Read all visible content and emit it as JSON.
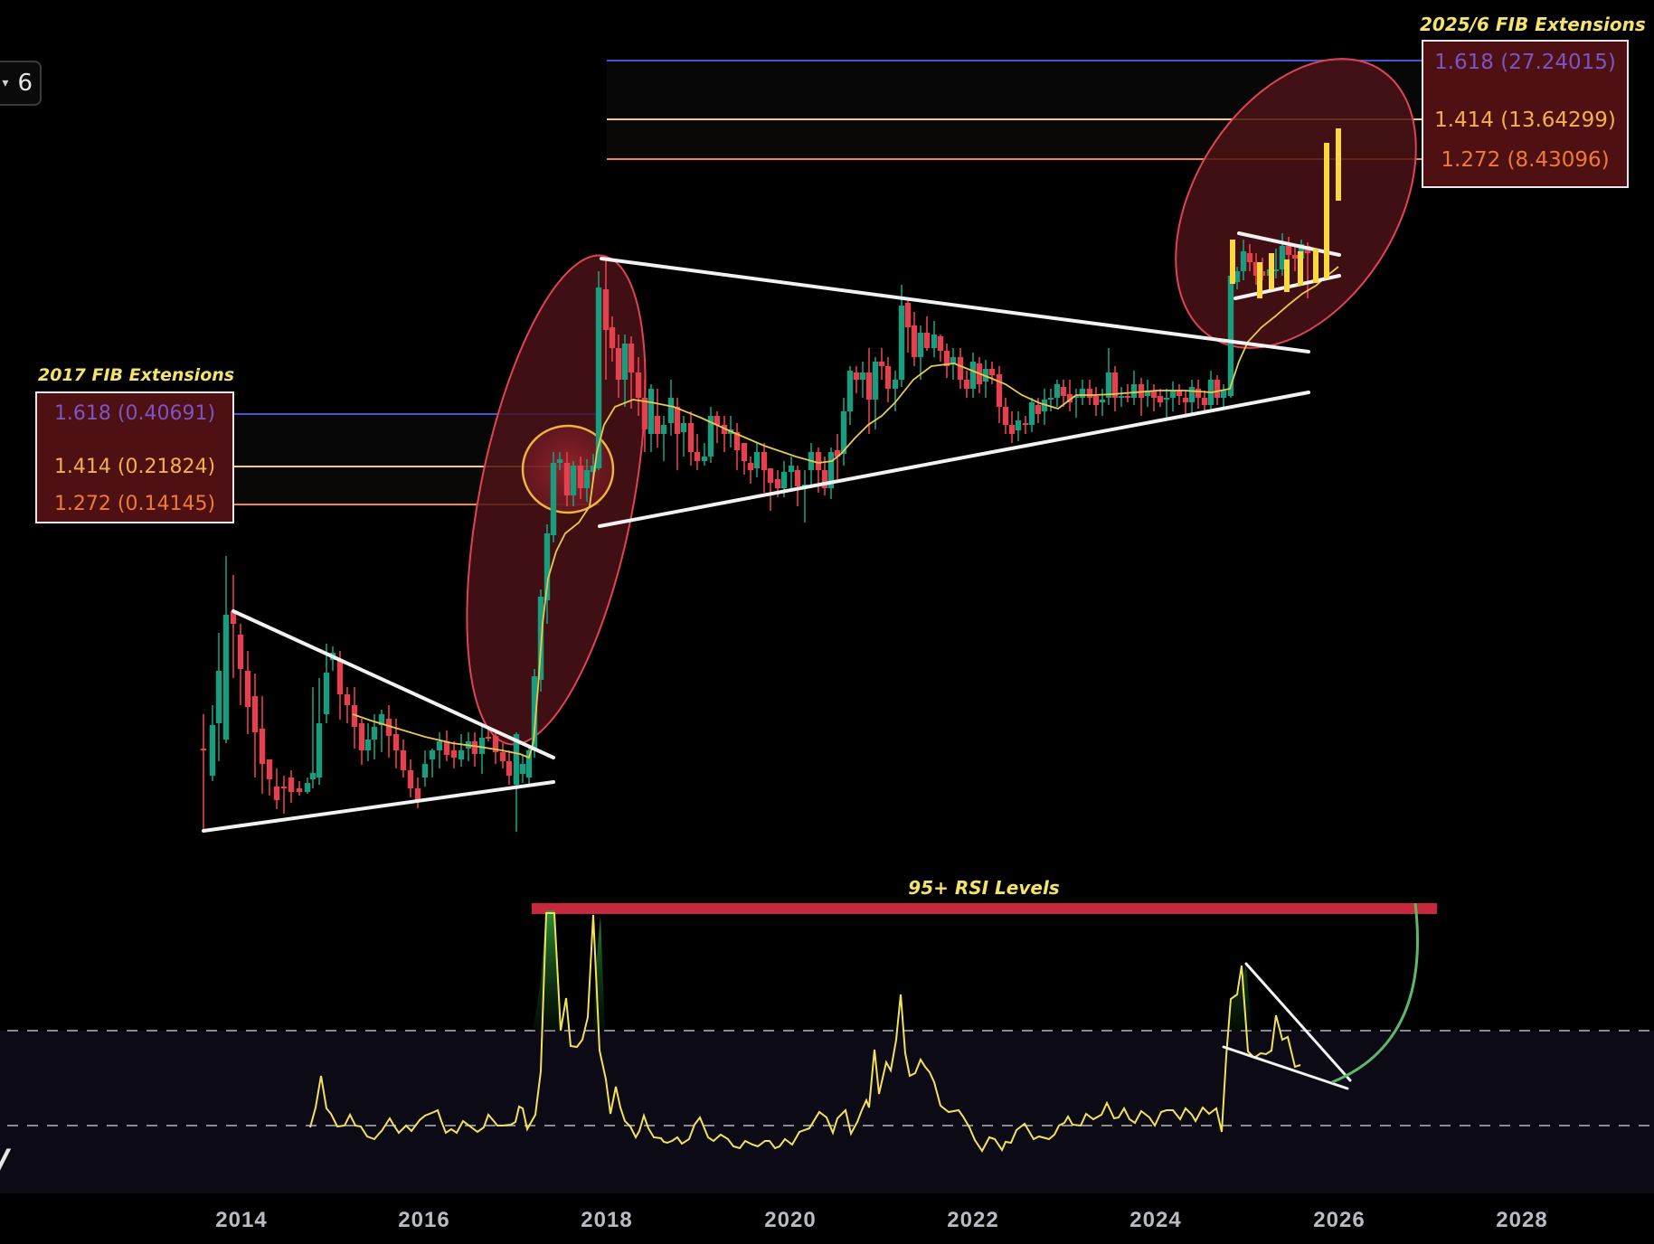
{
  "toolbar": {
    "interval_value": "6",
    "interval_chevron": "▾"
  },
  "annotations": {
    "fib_2017": {
      "title": "2017 FIB Extensions",
      "levels": [
        {
          "ratio": "1.618",
          "value": "0.40691",
          "label": "1.618 (0.40691)",
          "color": "#7b55c4",
          "line_color": "#3f57d6"
        },
        {
          "ratio": "1.414",
          "value": "0.21824",
          "label": "1.414 (0.21824)",
          "color": "#f2b14a",
          "line_color": "#f3d35a"
        },
        {
          "ratio": "1.272",
          "value": "0.14145",
          "label": "1.272 (0.14145)",
          "color": "#f07a34",
          "line_color": "#f08a3a"
        }
      ]
    },
    "fib_2025": {
      "title": "2025/6 FIB Extensions",
      "levels": [
        {
          "ratio": "1.618",
          "value": "27.24015",
          "label": "1.618 (27.24015)",
          "color": "#7b55c4",
          "line_color": "#3f57d6"
        },
        {
          "ratio": "1.414",
          "value": "13.64299",
          "label": "1.414 (13.64299)",
          "color": "#f2b14a",
          "line_color": "#f3d35a"
        },
        {
          "ratio": "1.272",
          "value": "8.43096",
          "label": "1.272 (8.43096)",
          "color": "#f07a34",
          "line_color": "#f08a3a"
        }
      ]
    },
    "rsi_title": "95+ RSI Levels",
    "logo_text": "/"
  },
  "colors": {
    "background": "#000000",
    "up_candle": "#1a9c7f",
    "down_candle": "#e5404e",
    "projection_candle": "#f8d83a",
    "ma_line": "#e9c94a",
    "trendline": "#f2f2f2",
    "highlight_ellipse": "#e04454",
    "rsi_line": "#f2e25a",
    "rsi_band": "#0c0a14",
    "rsi_95_bar": "#c8283c",
    "projection_arc": "#5fb56a"
  },
  "chart_data": [
    {
      "type": "candlestick",
      "title": "",
      "xlabel": "",
      "ylabel": "",
      "x_ticks": [
        "2014",
        "2016",
        "2018",
        "2020",
        "2022",
        "2024",
        "2026",
        "2028"
      ],
      "scale": "log",
      "annotations": [
        {
          "type": "symmetrical_triangle",
          "span": [
            "2013-11",
            "2017-02"
          ]
        },
        {
          "type": "symmetrical_triangle",
          "span": [
            "2018-01",
            "2024-11"
          ]
        },
        {
          "type": "bull_pennant",
          "span": [
            "2024-12",
            "2025-10"
          ]
        },
        {
          "type": "ellipse_highlight",
          "around": "2017 breakout rally"
        },
        {
          "type": "ellipse_highlight",
          "around": "2024-2026 breakout rally"
        },
        {
          "type": "circle_highlight",
          "around": "2017 consolidation at 1.414 fib"
        },
        {
          "type": "projection_bars",
          "desc": "yellow projected candles up to 1.272-1.414 fib zone"
        }
      ],
      "fib_extension_sets": [
        {
          "name": "2017 FIB Extensions",
          "levels": {
            "1.618": 0.40691,
            "1.414": 0.21824,
            "1.272": 0.14145
          }
        },
        {
          "name": "2025/6 FIB Extensions",
          "levels": {
            "1.618": 27.24015,
            "1.414": 13.64299,
            "1.272": 8.43096
          }
        }
      ]
    },
    {
      "type": "line",
      "title": "95+ RSI Levels",
      "series": [
        {
          "name": "RSI",
          "desc": "peaks reach 95+ in 2017 (two peaks), ~90 in late 2024, then descending wedge; projected green arc back to 95+ by ~2027"
        }
      ],
      "reference_lines": [
        {
          "y": 95,
          "style": "thick red bar"
        },
        {
          "y": 70,
          "style": "dashed"
        },
        {
          "y": 30,
          "style": "dashed"
        }
      ],
      "ylim": [
        0,
        100
      ]
    }
  ]
}
